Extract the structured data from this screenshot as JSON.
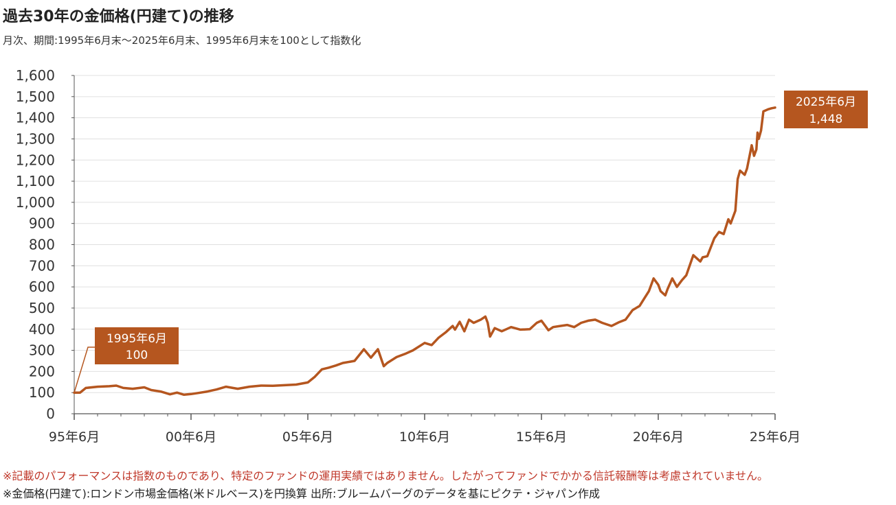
{
  "title": "過去30年の金価格(円建て)の推移",
  "subtitle": "月次、期間:1995年6月末〜2025年6月末、1995年6月末を100として指数化",
  "notes": [
    "※記載のパフォーマンスは指数のものであり、特定のファンドの運用実績ではありません。したがってファンドでかかる信託報酬等は考慮されていません。",
    "※金価格(円建て):ロンドン市場金価格(米ドルベース)を円換算 出所:ブルームバーグのデータを基にピクテ・ジャパン作成"
  ],
  "colors": {
    "series": "#b5561f",
    "grid": "#e0e0e0",
    "axis": "#555555"
  },
  "chart_data": {
    "type": "line",
    "title": "過去30年の金価格(円建て)の推移",
    "xlabel": "",
    "ylabel": "",
    "xlim": [
      1995.5,
      2025.5
    ],
    "ylim": [
      0,
      1600
    ],
    "yticks": [
      0,
      100,
      200,
      300,
      400,
      500,
      600,
      700,
      800,
      900,
      1000,
      1100,
      1200,
      1300,
      1400,
      1500,
      1600
    ],
    "ytick_labels": [
      "0",
      "100",
      "200",
      "300",
      "400",
      "500",
      "600",
      "700",
      "800",
      "900",
      "1,000",
      "1,100",
      "1,200",
      "1,300",
      "1,400",
      "1,500",
      "1,600"
    ],
    "xticks": [
      1995.5,
      2000.5,
      2005.5,
      2010.5,
      2015.5,
      2020.5,
      2025.5
    ],
    "xtick_labels": [
      "95年6月",
      "00年6月",
      "05年6月",
      "10年6月",
      "15年6月",
      "20年6月",
      "25年6月"
    ],
    "grid": true,
    "series": [
      {
        "color": "#b5561f",
        "x": [
          1995.5,
          1995.75,
          1996.0,
          1996.5,
          1997.0,
          1997.3,
          1997.6,
          1998.0,
          1998.5,
          1998.8,
          1999.2,
          1999.6,
          1999.9,
          2000.2,
          2000.5,
          2000.8,
          2001.2,
          2001.6,
          2002.0,
          2002.5,
          2003.0,
          2003.5,
          2004.0,
          2004.5,
          2005.0,
          2005.5,
          2005.8,
          2006.1,
          2006.4,
          2006.7,
          2007.0,
          2007.5,
          2007.9,
          2008.2,
          2008.5,
          2008.75,
          2008.9,
          2009.3,
          2009.7,
          2010.0,
          2010.5,
          2010.8,
          2011.1,
          2011.4,
          2011.7,
          2011.8,
          2012.0,
          2012.2,
          2012.4,
          2012.6,
          2012.9,
          2013.1,
          2013.2,
          2013.3,
          2013.5,
          2013.8,
          2014.2,
          2014.6,
          2015.0,
          2015.3,
          2015.5,
          2015.8,
          2016.0,
          2016.3,
          2016.6,
          2016.9,
          2017.2,
          2017.5,
          2017.8,
          2018.1,
          2018.5,
          2018.8,
          2019.1,
          2019.4,
          2019.7,
          2019.9,
          2020.1,
          2020.3,
          2020.5,
          2020.6,
          2020.8,
          2020.9,
          2021.1,
          2021.3,
          2021.5,
          2021.7,
          2022.0,
          2022.3,
          2022.4,
          2022.6,
          2022.9,
          2023.1,
          2023.3,
          2023.5,
          2023.6,
          2023.8,
          2023.9,
          2024.0,
          2024.2,
          2024.3,
          2024.5,
          2024.6,
          2024.7,
          2024.75,
          2024.8,
          2024.9,
          2025.0,
          2025.2,
          2025.35,
          2025.5
        ],
        "y": [
          100,
          100,
          122,
          128,
          130,
          133,
          122,
          118,
          125,
          112,
          105,
          92,
          100,
          90,
          93,
          98,
          105,
          115,
          128,
          118,
          128,
          133,
          132,
          135,
          138,
          148,
          175,
          210,
          218,
          228,
          240,
          250,
          305,
          265,
          305,
          225,
          240,
          268,
          285,
          300,
          335,
          325,
          360,
          385,
          415,
          398,
          435,
          390,
          445,
          430,
          445,
          460,
          430,
          365,
          405,
          390,
          410,
          398,
          400,
          430,
          440,
          395,
          410,
          415,
          420,
          410,
          430,
          440,
          445,
          430,
          415,
          432,
          445,
          490,
          510,
          545,
          580,
          640,
          610,
          580,
          560,
          590,
          640,
          600,
          630,
          655,
          750,
          720,
          740,
          745,
          830,
          860,
          850,
          920,
          900,
          960,
          1110,
          1150,
          1130,
          1160,
          1270,
          1220,
          1250,
          1330,
          1300,
          1340,
          1430,
          1440,
          1445,
          1448
        ]
      }
    ],
    "annotations": [
      {
        "x": 1995.5,
        "y": 100,
        "label_line1": "1995年6月",
        "label_line2": "100"
      },
      {
        "x": 2025.5,
        "y": 1448,
        "label_line1": "2025年6月",
        "label_line2": "1,448"
      }
    ]
  }
}
